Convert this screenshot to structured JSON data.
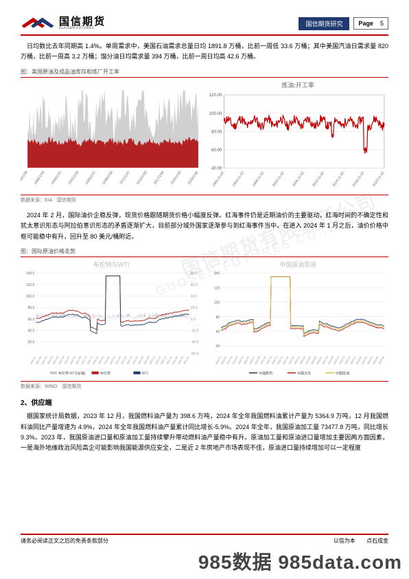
{
  "header": {
    "logo_cn": "国信期货",
    "logo_en": "GUOSEN FUTURES",
    "badge": "国信期货研究",
    "page_label": "Page",
    "page_num": "5"
  },
  "para1": "日均数比去年同期高 1.4%。单周需求中，美国石油需求总量日均 1891.8 万桶，比前一周低 33.6 万桶；其中美国汽油日需求量 820 万桶，比前一周高 3.2 万桶；馏分油日均需求量 394 万桶，比前一周日均高 42.6 万桶。",
  "fig1_label": "图：美国原油及成品油库存和炼厂开工率",
  "chart1": {
    "type": "area",
    "title_pos": "top",
    "bg": "#ffffff",
    "grid_color": "#e0e0e0",
    "series_colors": [
      "#d0d0d0",
      "#b22222"
    ],
    "x_ticks": [
      "1993/1/08",
      "1996/1/05",
      "1999/1/01",
      "2002/1/04",
      "2005/1/07",
      "2008/1/04",
      "2011/1/07",
      "2014/1/03",
      "2017/1/06",
      "2020/1/03",
      "2023/1/06"
    ],
    "y_max": 1400
  },
  "chart2": {
    "type": "line",
    "title": "炼油:开工率",
    "title_color": "#888888",
    "bg": "#ffffff",
    "grid": true,
    "grid_color": "#dddddd",
    "line_color": "#c00000",
    "line_width": 1.2,
    "y_ticks": [
      40,
      60,
      80,
      100,
      120
    ],
    "ylim": [
      40,
      120
    ],
    "x_ticks": [
      "1990-11-02",
      "1994-11-02",
      "1998-11-02",
      "2002-11-02",
      "2006-11-02",
      "2010-11-02",
      "2014-11-02",
      "2018-11-02",
      "2022-11-02"
    ],
    "min_dip": 56
  },
  "src1": "数据来源：EIA　国信期货",
  "para2": "2024 年 2 月，国际油价企稳反弹，现货价格跟随期货价格小幅度反弹。红海事件仍是近期油价的主要驱动，红海时间的不确定性和犹太意识形态与阿拉伯意识形态的矛盾逐渐扩大，目前部分域外国家逐渐参与到红海事件当中。在进入 2024 年 1 月之后，油价价格中枢可能稳中有升，回升至 80 美元/桶附近。",
  "fig2_label": "图：国际原油价格走势",
  "chart3": {
    "type": "line",
    "title": "布伦特与WTI",
    "bg": "#ffffff",
    "grid_color": "#e5e5e5",
    "series": [
      {
        "name": "布伦特-WTI(右轴)",
        "color": "#c9c9c9",
        "kind": "area"
      },
      {
        "name": "布伦特",
        "color": "#b22222",
        "kind": "line"
      },
      {
        "name": "WTI",
        "color": "#1f3a6e",
        "kind": "line"
      }
    ],
    "y_ticks": [
      20,
      40,
      60,
      80,
      100,
      120,
      140
    ],
    "y2_ticks": [
      -60,
      -40,
      -20,
      0,
      20,
      40,
      60,
      80
    ],
    "ylim": [
      0,
      140
    ],
    "legend_pos": "bottom"
  },
  "chart4": {
    "type": "line",
    "title": "中国原油现货",
    "bg": "#ffffff",
    "grid_color": "#e5e5e5",
    "series": [
      {
        "name": "中国胜利",
        "color": "#1f3a6e"
      },
      {
        "name": "中国大庆",
        "color": "#b22222"
      },
      {
        "name": "中国原油",
        "color": "#e0c040"
      }
    ],
    "y_ticks": [
      40,
      60,
      80,
      100,
      120,
      140
    ],
    "ylim": [
      30,
      140
    ],
    "legend_pos": "bottom"
  },
  "src2": "数据来源：WIND　国信期货",
  "section2": "2、供应端",
  "para3": "据国家统计局数据，2023 年 12 月，我国燃料油产量为 398.6 万吨，2024 年全年我国燃料油累计产量为 5364.9 万吨，12 月我国燃料油同比产量增速为 4.9%，2024 年全年我国燃料油产量累计同比增长-5.9%。2024 年全年，我国原油加工量 73477.8 万吨，同比增长 9.3%。2023 年，我国原油进口量和原油加工量持续攀升带动燃料油产量稳中有升。原油加工量和原油进口量增加主要因两方面因素，一是海外地缘政治风险高企可能影响我国能源供应安全，二是近 2 年房地产市场表现不佳，原油进口量持续增加可以一定程度",
  "footer": {
    "left": "请务必阅读正文之后的免责条款部分",
    "r1": "以信为本",
    "r2": "点石成金"
  },
  "big_wm": "985数据 985data.com",
  "diag_wm_cn": "国信期货有限责任公司",
  "diag_wm_en": "GUOSEN FUTURES CO.,LTD."
}
